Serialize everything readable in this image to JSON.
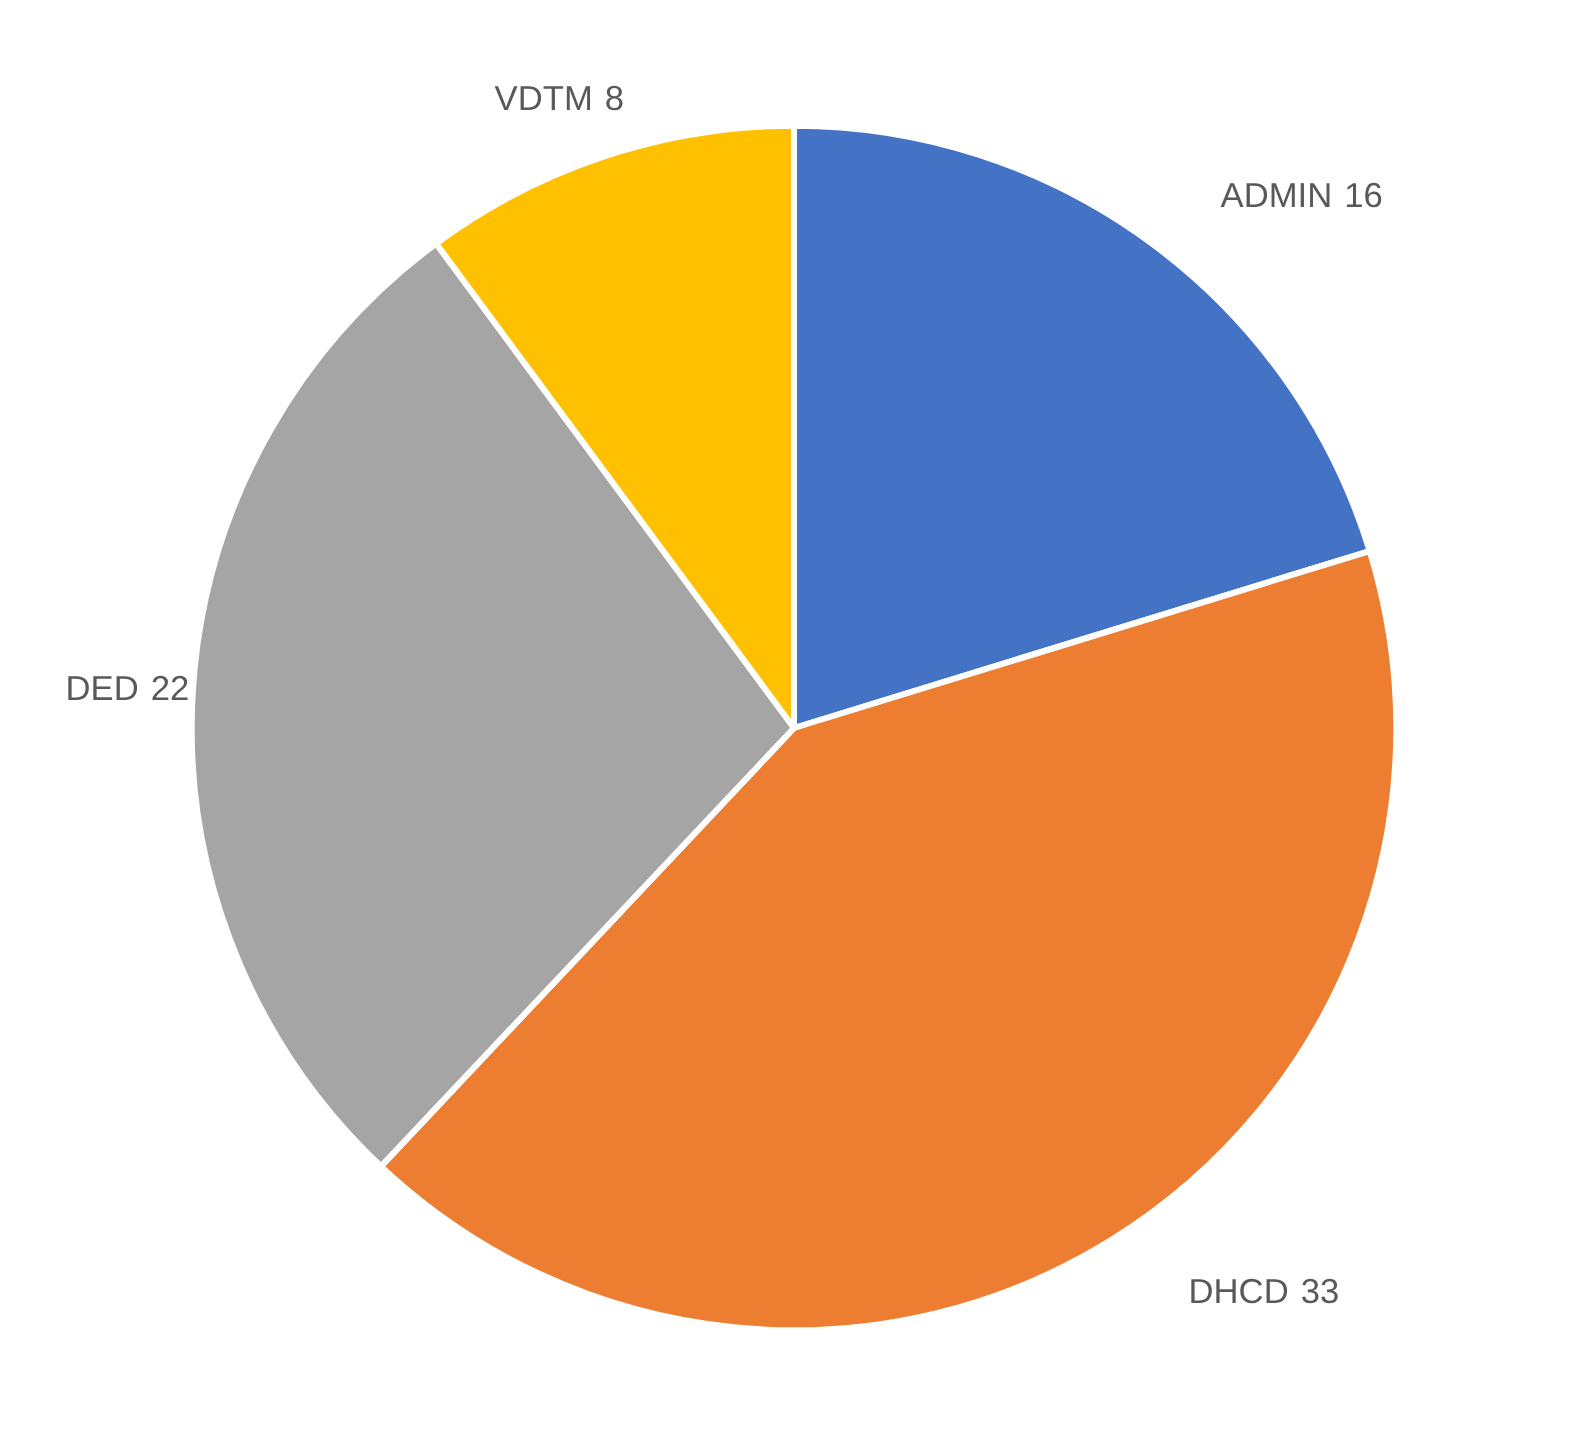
{
  "chart_data": {
    "type": "pie",
    "categories": [
      "ADMIN",
      "DHCD",
      "DED",
      "VDTM"
    ],
    "values": [
      16,
      33,
      22,
      8
    ],
    "colors": [
      "#4472c4",
      "#ed7d31",
      "#a5a5a5",
      "#ffc000"
    ],
    "data_labels": true
  }
}
